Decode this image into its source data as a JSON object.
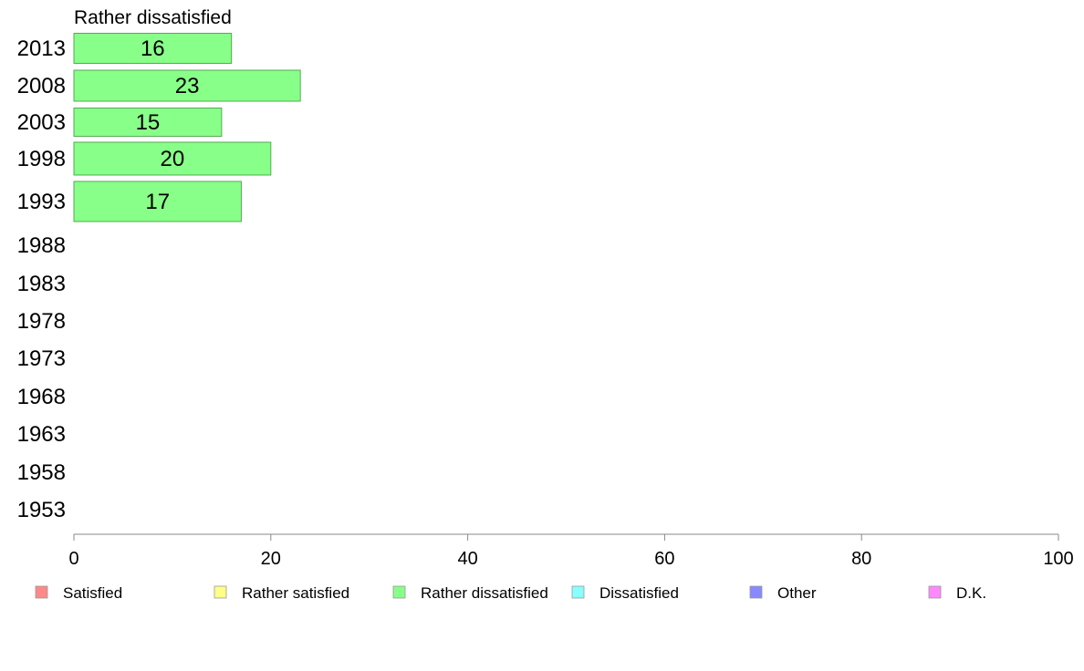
{
  "chart_data": {
    "type": "bar",
    "orientation": "horizontal",
    "title": "Rather dissatisfied",
    "categories": [
      "2013",
      "2008",
      "2003",
      "1998",
      "1993",
      "1988",
      "1983",
      "1978",
      "1973",
      "1968",
      "1963",
      "1958",
      "1953"
    ],
    "series": [
      {
        "name": "Rather dissatisfied",
        "values": [
          16,
          23,
          15,
          20,
          17,
          null,
          null,
          null,
          null,
          null,
          null,
          null,
          null
        ],
        "color": "#88ff88"
      }
    ],
    "xlim": [
      0,
      100
    ],
    "xticks": [
      0,
      20,
      40,
      60,
      80,
      100
    ],
    "grid": false,
    "legend": {
      "placement": "bottom",
      "entries": [
        {
          "label": "Satisfied",
          "color": "#ff8888"
        },
        {
          "label": "Rather satisfied",
          "color": "#ffff88"
        },
        {
          "label": "Rather dissatisfied",
          "color": "#88ff88"
        },
        {
          "label": "Dissatisfied",
          "color": "#88ffff"
        },
        {
          "label": "Other",
          "color": "#8888ff"
        },
        {
          "label": "D.K.",
          "color": "#ff88ff"
        }
      ]
    }
  }
}
